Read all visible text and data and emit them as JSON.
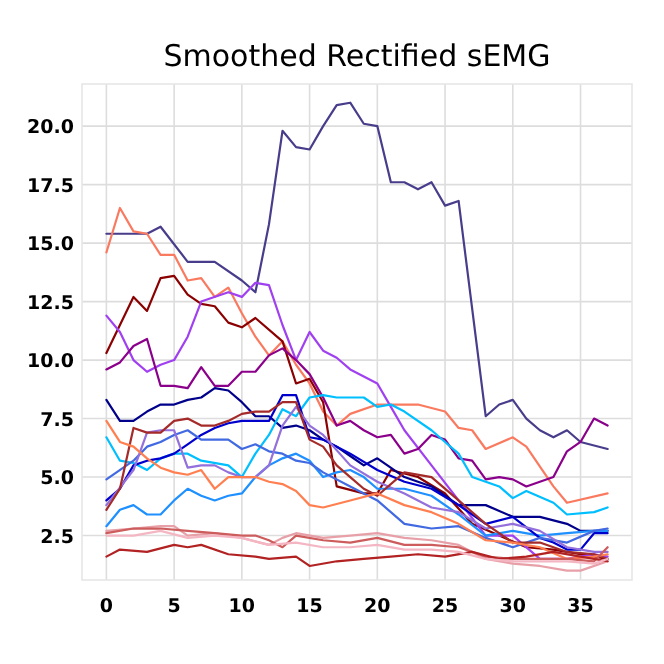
{
  "chart_data": {
    "type": "line",
    "title": "Smoothed Rectified sEMG",
    "xlim": [
      -1.8,
      38.8
    ],
    "ylim": [
      0.6,
      21.8
    ],
    "xticks": [
      0,
      5,
      10,
      15,
      20,
      25,
      30,
      35
    ],
    "yticks": [
      {
        "value": 2.5,
        "label": "2.5"
      },
      {
        "value": 5,
        "label": "5.0"
      },
      {
        "value": 7.5,
        "label": "7.5"
      },
      {
        "value": 10,
        "label": "10.0"
      },
      {
        "value": 12.5,
        "label": "12.5"
      },
      {
        "value": 15,
        "label": "15.0"
      },
      {
        "value": 17.5,
        "label": "17.5"
      },
      {
        "value": 20,
        "label": "20.0"
      }
    ],
    "grid": true,
    "series": [
      {
        "color": "#483d8b",
        "x": [
          0,
          3,
          4,
          6,
          8,
          10,
          11,
          12,
          13,
          14,
          15,
          16,
          17,
          18,
          19,
          20,
          21,
          22,
          23,
          24,
          25,
          26,
          28,
          29,
          30,
          31,
          32,
          33,
          34,
          35,
          37
        ],
        "values": [
          15.4,
          15.4,
          15.7,
          14.2,
          14.2,
          13.4,
          12.9,
          15.8,
          19.8,
          19.1,
          19.0,
          20.0,
          20.9,
          21.0,
          20.1,
          20.0,
          17.6,
          17.6,
          17.3,
          17.6,
          16.6,
          16.8,
          7.6,
          8.1,
          8.3,
          7.5,
          7.0,
          6.7,
          7.0,
          6.5,
          6.2
        ]
      },
      {
        "color": "#fa7a60",
        "x": [
          0,
          1,
          2,
          3,
          4,
          5,
          6,
          7,
          8,
          9,
          10,
          11,
          12,
          13,
          14,
          15,
          16,
          17,
          18,
          20,
          23,
          25,
          26,
          27,
          28,
          30,
          31,
          33,
          34,
          37
        ],
        "values": [
          14.6,
          16.5,
          15.5,
          15.4,
          14.5,
          14.5,
          13.4,
          13.5,
          12.7,
          13.1,
          12.0,
          11.0,
          10.2,
          10.8,
          9.8,
          9.0,
          7.8,
          7.2,
          7.7,
          8.1,
          8.1,
          7.8,
          7.1,
          7.0,
          6.2,
          6.7,
          6.3,
          4.6,
          3.9,
          4.3
        ]
      },
      {
        "color": "#8b0000",
        "x": [
          0,
          2,
          3,
          4,
          5,
          6,
          7,
          8,
          9,
          10,
          11,
          13,
          14,
          15,
          16,
          17,
          19,
          20,
          21,
          23,
          25,
          27,
          29,
          31,
          33,
          35,
          37
        ],
        "values": [
          10.3,
          12.7,
          12.1,
          13.5,
          13.6,
          12.8,
          12.4,
          12.3,
          11.6,
          11.4,
          11.8,
          10.8,
          9.0,
          9.2,
          8.2,
          4.6,
          4.3,
          4.3,
          5.3,
          5.0,
          4.3,
          3.0,
          2.5,
          2.0,
          1.9,
          1.7,
          1.5
        ]
      },
      {
        "color": "#a040f0",
        "x": [
          0,
          1,
          2,
          3,
          4,
          5,
          6,
          7,
          9,
          10,
          11,
          12,
          13,
          14,
          15,
          16,
          17,
          18,
          20,
          21,
          22,
          24,
          26,
          28,
          30,
          32,
          34,
          36,
          37
        ],
        "values": [
          11.9,
          11.2,
          10.0,
          9.5,
          9.8,
          10.0,
          11.0,
          12.5,
          12.9,
          12.7,
          13.3,
          13.2,
          11.5,
          10.0,
          11.2,
          10.4,
          10.1,
          9.6,
          9.0,
          8.0,
          7.0,
          5.5,
          4.0,
          2.5,
          2.5,
          1.5,
          1.5,
          1.7,
          1.6
        ]
      },
      {
        "color": "#8b008b",
        "x": [
          0,
          1,
          2,
          3,
          4,
          5,
          6,
          7,
          8,
          9,
          10,
          11,
          12,
          13,
          14,
          15,
          16,
          17,
          18,
          19,
          20,
          21,
          22,
          23,
          24,
          25,
          26,
          27,
          28,
          29,
          30,
          31,
          33,
          34,
          35,
          36,
          37
        ],
        "values": [
          9.6,
          9.9,
          10.6,
          10.9,
          8.9,
          8.9,
          8.8,
          9.7,
          8.9,
          8.9,
          9.5,
          9.5,
          10.2,
          10.5,
          10.0,
          9.4,
          8.4,
          7.2,
          7.4,
          7.0,
          6.7,
          6.8,
          6.0,
          6.2,
          6.8,
          6.6,
          5.8,
          5.7,
          4.9,
          5.0,
          4.9,
          4.6,
          5.0,
          6.1,
          6.5,
          7.5,
          7.2
        ]
      },
      {
        "color": "#00008b",
        "x": [
          0,
          1,
          2,
          3,
          4,
          5,
          6,
          7,
          8,
          9,
          10,
          11,
          12,
          13,
          14,
          15,
          16,
          17,
          18,
          19,
          20,
          22,
          24,
          26,
          28,
          30,
          32,
          34,
          35,
          37
        ],
        "values": [
          8.3,
          7.4,
          7.4,
          7.8,
          8.1,
          8.1,
          8.3,
          8.4,
          8.8,
          8.7,
          8.2,
          7.6,
          7.6,
          7.1,
          7.2,
          7.0,
          6.6,
          6.3,
          5.9,
          5.5,
          5.8,
          5.0,
          4.6,
          3.8,
          3.8,
          3.3,
          3.3,
          3.0,
          2.7,
          2.7
        ]
      },
      {
        "color": "#00bfff",
        "x": [
          0,
          1,
          2,
          3,
          4,
          5,
          6,
          7,
          9,
          10,
          11,
          12,
          13,
          14,
          15,
          16,
          17,
          19,
          20,
          21,
          22,
          24,
          25,
          26,
          27,
          28,
          29,
          30,
          31,
          33,
          34,
          36,
          37
        ],
        "values": [
          6.7,
          5.7,
          5.6,
          5.3,
          5.8,
          6.0,
          6.0,
          5.7,
          5.5,
          5.0,
          6.0,
          6.8,
          7.9,
          7.6,
          8.4,
          8.5,
          8.4,
          8.4,
          8.0,
          8.1,
          7.8,
          7.0,
          6.5,
          6.0,
          5.0,
          4.8,
          4.6,
          4.1,
          4.4,
          3.9,
          3.4,
          3.5,
          3.7
        ]
      },
      {
        "color": "#1e90ff",
        "x": [
          0,
          1,
          2,
          3,
          4,
          5,
          6,
          7,
          8,
          9,
          10,
          11,
          12,
          13,
          14,
          15,
          16,
          17,
          18,
          19,
          20,
          22,
          24,
          26,
          28,
          30,
          32,
          34,
          36,
          37
        ],
        "values": [
          2.9,
          3.6,
          3.8,
          3.4,
          3.4,
          4.0,
          4.5,
          4.2,
          4.0,
          4.2,
          4.3,
          5.0,
          5.5,
          5.8,
          6.0,
          5.7,
          5.0,
          5.2,
          5.3,
          5.0,
          4.5,
          4.5,
          4.2,
          3.4,
          2.5,
          2.7,
          2.5,
          2.6,
          2.7,
          2.7
        ]
      },
      {
        "color": "#0000cd",
        "x": [
          0,
          1,
          2,
          3,
          4,
          5,
          6,
          7,
          8,
          9,
          10,
          11,
          12,
          13,
          14,
          15,
          16,
          18,
          20,
          22,
          24,
          26,
          28,
          30,
          32,
          33,
          34,
          35,
          36,
          37
        ],
        "values": [
          4.0,
          4.5,
          5.5,
          5.7,
          5.8,
          6.0,
          6.4,
          6.8,
          7.1,
          7.3,
          7.4,
          7.4,
          7.4,
          8.5,
          8.5,
          6.7,
          6.6,
          6.0,
          5.3,
          4.8,
          4.5,
          3.8,
          3.0,
          3.3,
          2.4,
          2.2,
          1.9,
          1.9,
          2.6,
          2.6
        ]
      },
      {
        "color": "#4169e1",
        "x": [
          0,
          2,
          3,
          4,
          5,
          6,
          7,
          8,
          9,
          10,
          11,
          12,
          13,
          14,
          15,
          16,
          18,
          20,
          22,
          24,
          26,
          28,
          30,
          32,
          34,
          36,
          37
        ],
        "values": [
          4.9,
          5.7,
          6.3,
          6.5,
          6.8,
          7.0,
          6.6,
          6.6,
          6.6,
          6.2,
          6.4,
          6.1,
          6.0,
          5.7,
          5.6,
          5.2,
          4.6,
          4.0,
          3.0,
          2.8,
          2.9,
          2.4,
          2.0,
          2.4,
          2.2,
          2.7,
          2.8
        ]
      },
      {
        "color": "#9370db",
        "x": [
          0,
          2,
          3,
          4,
          5,
          6,
          7,
          8,
          9,
          10,
          11,
          12,
          13,
          14,
          15,
          16,
          18,
          20,
          22,
          24,
          26,
          28,
          30,
          32,
          34,
          36,
          37
        ],
        "values": [
          3.8,
          5.3,
          6.9,
          7.0,
          7.0,
          5.4,
          5.5,
          5.5,
          5.2,
          5.0,
          5.0,
          5.5,
          7.2,
          8.0,
          7.2,
          6.8,
          5.5,
          4.8,
          4.3,
          3.7,
          3.5,
          2.8,
          3.0,
          2.7,
          2.0,
          1.8,
          1.8
        ]
      },
      {
        "color": "#a52a2a",
        "x": [
          0,
          1,
          2,
          3,
          4,
          5,
          6,
          7,
          8,
          9,
          10,
          11,
          12,
          13,
          14,
          15,
          16,
          17,
          18,
          19,
          20,
          22,
          24,
          26,
          28,
          30,
          32,
          34,
          36,
          37
        ],
        "values": [
          3.6,
          4.5,
          7.1,
          6.9,
          6.9,
          7.4,
          7.5,
          7.2,
          7.2,
          7.4,
          7.7,
          7.8,
          7.8,
          8.2,
          8.2,
          6.6,
          6.3,
          5.5,
          5.0,
          4.5,
          4.2,
          5.2,
          5.0,
          4.0,
          3.0,
          2.2,
          2.2,
          1.8,
          1.7,
          1.5
        ]
      },
      {
        "color": "#ff7f50",
        "x": [
          0,
          1,
          2,
          3,
          4,
          5,
          6,
          7,
          8,
          9,
          10,
          11,
          12,
          13,
          14,
          15,
          16,
          18,
          20,
          22,
          24,
          26,
          28,
          30,
          32,
          34,
          36,
          37
        ],
        "values": [
          7.4,
          6.5,
          6.3,
          5.8,
          5.4,
          5.2,
          5.1,
          5.3,
          4.5,
          5.0,
          5.0,
          5.0,
          4.8,
          4.7,
          4.4,
          3.8,
          3.7,
          4.0,
          4.3,
          3.8,
          3.5,
          3.0,
          2.3,
          2.2,
          2.0,
          1.5,
          1.6,
          1.7
        ]
      },
      {
        "color": "#e8a0a8",
        "x": [
          0,
          2,
          4,
          5,
          6,
          8,
          10,
          12,
          13,
          14,
          16,
          18,
          20,
          22,
          24,
          26,
          28,
          30,
          32,
          34,
          35,
          37
        ],
        "values": [
          2.7,
          2.8,
          2.9,
          2.9,
          2.5,
          2.6,
          2.4,
          2.1,
          2.4,
          2.6,
          2.4,
          2.5,
          2.6,
          2.4,
          2.3,
          2.1,
          1.5,
          1.3,
          1.2,
          1.0,
          1.0,
          1.4
        ]
      },
      {
        "color": "#cd5c5c",
        "x": [
          0,
          2,
          4,
          6,
          8,
          10,
          11,
          12,
          13,
          14,
          16,
          18,
          20,
          22,
          24,
          26,
          28,
          30,
          32,
          34,
          36,
          37
        ],
        "values": [
          2.6,
          2.8,
          2.8,
          2.7,
          2.6,
          2.5,
          2.5,
          2.3,
          2.0,
          2.5,
          2.3,
          2.2,
          2.4,
          2.1,
          2.1,
          2.0,
          1.6,
          1.5,
          1.5,
          1.5,
          1.4,
          2.0
        ]
      },
      {
        "color": "#b22222",
        "x": [
          0,
          1,
          3,
          5,
          6,
          7,
          9,
          11,
          12,
          14,
          15,
          17,
          19,
          21,
          23,
          25,
          27,
          29,
          31,
          33,
          35,
          37
        ],
        "values": [
          1.6,
          1.9,
          1.8,
          2.1,
          2.0,
          2.1,
          1.7,
          1.6,
          1.5,
          1.6,
          1.2,
          1.4,
          1.5,
          1.6,
          1.7,
          1.6,
          1.8,
          1.5,
          1.6,
          1.8,
          1.6,
          1.4
        ]
      },
      {
        "color": "#f4b6c2",
        "x": [
          0,
          2,
          4,
          6,
          8,
          10,
          12,
          14,
          16,
          18,
          20,
          22,
          24,
          26,
          28,
          30,
          32,
          34,
          36,
          37
        ],
        "values": [
          2.5,
          2.5,
          2.7,
          2.4,
          2.5,
          2.4,
          2.1,
          2.2,
          2.0,
          2.0,
          2.1,
          1.9,
          1.9,
          1.8,
          1.5,
          1.4,
          1.4,
          1.4,
          1.3,
          1.5
        ]
      }
    ]
  }
}
